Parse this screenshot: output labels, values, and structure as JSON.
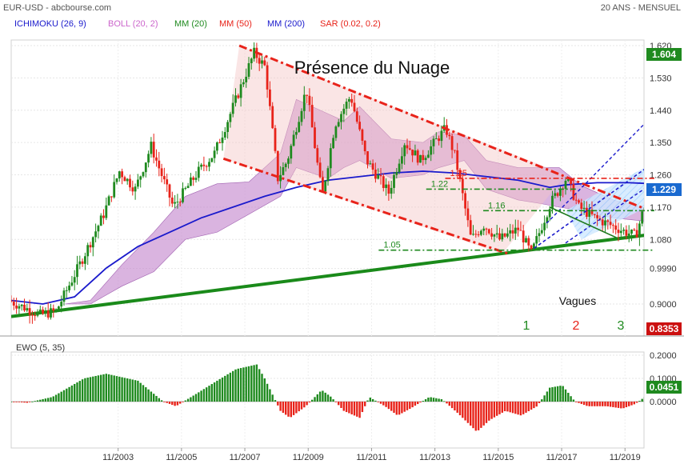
{
  "header": {
    "symbol": "EUR-USD - abcbourse.com",
    "period": "20 ANS - MENSUEL"
  },
  "legend": [
    {
      "label": "ICHIMOKU (26, 9)",
      "color": "#1a1acc"
    },
    {
      "label": "BOLL (20, 2)",
      "color": "#cc66cc"
    },
    {
      "label": "MM (20)",
      "color": "#1f8a1f"
    },
    {
      "label": "MM (50)",
      "color": "#e8231a"
    },
    {
      "label": "MM (200)",
      "color": "#1a1acc"
    },
    {
      "label": "SAR (0.02, 0.2)",
      "color": "#e8231a"
    }
  ],
  "annotations": {
    "title": "Présence du Nuage",
    "vagues": "Vagues",
    "waves": [
      {
        "label": "1",
        "color": "#1f8a1f"
      },
      {
        "label": "2",
        "color": "#e8231a"
      },
      {
        "label": "3",
        "color": "#1f8a1f"
      }
    ],
    "levels": [
      {
        "label": "1.25",
        "value": 1.25,
        "color": "#e8231a"
      },
      {
        "label": "1.22",
        "value": 1.22,
        "color": "#1f8a1f"
      },
      {
        "label": "1.16",
        "value": 1.16,
        "color": "#1f8a1f"
      },
      {
        "label": "1.05",
        "value": 1.05,
        "color": "#1f8a1f"
      }
    ]
  },
  "badges": {
    "high": "1.604",
    "last": "1.229",
    "low": "0.8353",
    "ewo_last": "0.0451"
  },
  "colors": {
    "bull": "#1f8a1f",
    "bear": "#e8231a",
    "cloud": "#c68cd0",
    "channel": "#e8231a",
    "support": "#1a8a1a",
    "ma200": "#1a1acc",
    "badge_green": "#1f8a1f",
    "badge_blue": "#1a6ad0",
    "badge_red": "#cc1111"
  },
  "chart_data": [
    {
      "type": "candlestick",
      "title": "Présence du Nuage",
      "x_label": "",
      "y_label": "",
      "x_range": [
        2000.5,
        2020.8
      ],
      "y_range": [
        0.8353,
        1.604
      ],
      "y_ticks": [
        "1.620",
        "1.530",
        "1.440",
        "1.350",
        "1.260",
        "1.170",
        "1.080",
        "0.9990",
        "0.9000"
      ],
      "x_ticks": [
        "11/2003",
        "11/2005",
        "11/2007",
        "11/2009",
        "11/2011",
        "11/2013",
        "11/2015",
        "11/2017",
        "11/2019"
      ],
      "price_path": [
        [
          2000.5,
          0.91
        ],
        [
          2001.5,
          0.87
        ],
        [
          2002.0,
          0.88
        ],
        [
          2002.8,
          1.02
        ],
        [
          2003.5,
          1.15
        ],
        [
          2004.0,
          1.27
        ],
        [
          2004.5,
          1.22
        ],
        [
          2005.0,
          1.34
        ],
        [
          2005.7,
          1.17
        ],
        [
          2006.5,
          1.27
        ],
        [
          2007.0,
          1.32
        ],
        [
          2007.5,
          1.43
        ],
        [
          2008.25,
          1.6
        ],
        [
          2008.6,
          1.56
        ],
        [
          2009.0,
          1.25
        ],
        [
          2009.3,
          1.3
        ],
        [
          2009.9,
          1.5
        ],
        [
          2010.4,
          1.2
        ],
        [
          2010.8,
          1.4
        ],
        [
          2011.3,
          1.48
        ],
        [
          2011.8,
          1.3
        ],
        [
          2012.5,
          1.21
        ],
        [
          2013.0,
          1.35
        ],
        [
          2013.5,
          1.3
        ],
        [
          2014.3,
          1.39
        ],
        [
          2014.6,
          1.31
        ],
        [
          2015.1,
          1.08
        ],
        [
          2015.5,
          1.12
        ],
        [
          2016.0,
          1.08
        ],
        [
          2016.6,
          1.11
        ],
        [
          2017.0,
          1.04
        ],
        [
          2017.6,
          1.18
        ],
        [
          2018.1,
          1.25
        ],
        [
          2018.5,
          1.17
        ],
        [
          2019.0,
          1.14
        ],
        [
          2019.5,
          1.12
        ],
        [
          2020.0,
          1.1
        ],
        [
          2020.3,
          1.09
        ],
        [
          2020.6,
          1.18
        ],
        [
          2020.8,
          1.229
        ]
      ],
      "ma200": [
        [
          2000.5,
          0.91
        ],
        [
          2001.5,
          0.9
        ],
        [
          2002.5,
          0.92
        ],
        [
          2003.5,
          1.0
        ],
        [
          2004.5,
          1.06
        ],
        [
          2005.5,
          1.1
        ],
        [
          2006.5,
          1.14
        ],
        [
          2007.5,
          1.17
        ],
        [
          2008.5,
          1.2
        ],
        [
          2009.5,
          1.225
        ],
        [
          2010.5,
          1.245
        ],
        [
          2011.5,
          1.255
        ],
        [
          2012.5,
          1.265
        ],
        [
          2013.5,
          1.27
        ],
        [
          2014.5,
          1.265
        ],
        [
          2015.5,
          1.255
        ],
        [
          2016.5,
          1.245
        ],
        [
          2017.5,
          1.225
        ],
        [
          2018.0,
          1.232
        ],
        [
          2019.0,
          1.238
        ],
        [
          2020.0,
          1.238
        ],
        [
          2020.8,
          1.235
        ]
      ],
      "cloud_upper": [
        [
          2002.2,
          0.9
        ],
        [
          2003.0,
          0.91
        ],
        [
          2004.0,
          1.01
        ],
        [
          2005.0,
          1.1
        ],
        [
          2006.0,
          1.2
        ],
        [
          2007.0,
          1.235
        ],
        [
          2008.0,
          1.24
        ],
        [
          2009.0,
          1.32
        ],
        [
          2009.5,
          1.47
        ],
        [
          2010.5,
          1.43
        ],
        [
          2011.0,
          1.41
        ],
        [
          2011.5,
          1.45
        ],
        [
          2012.5,
          1.36
        ],
        [
          2013.5,
          1.35
        ],
        [
          2014.0,
          1.38
        ],
        [
          2014.8,
          1.37
        ],
        [
          2015.5,
          1.3
        ],
        [
          2016.5,
          1.28
        ],
        [
          2017.2,
          1.28
        ],
        [
          2017.8,
          1.28
        ],
        [
          2018.5,
          1.23
        ],
        [
          2019.5,
          1.19
        ],
        [
          2020.6,
          1.165
        ],
        [
          2020.8,
          1.16
        ]
      ],
      "cloud_lower": [
        [
          2002.2,
          0.9
        ],
        [
          2003.0,
          0.9
        ],
        [
          2004.0,
          0.95
        ],
        [
          2005.0,
          0.99
        ],
        [
          2006.0,
          1.08
        ],
        [
          2007.0,
          1.1
        ],
        [
          2008.0,
          1.15
        ],
        [
          2009.0,
          1.2
        ],
        [
          2009.5,
          1.28
        ],
        [
          2010.5,
          1.25
        ],
        [
          2011.0,
          1.28
        ],
        [
          2011.5,
          1.3
        ],
        [
          2012.5,
          1.25
        ],
        [
          2013.5,
          1.26
        ],
        [
          2014.0,
          1.28
        ],
        [
          2014.8,
          1.3
        ],
        [
          2015.5,
          1.22
        ],
        [
          2016.5,
          1.19
        ],
        [
          2017.2,
          1.18
        ],
        [
          2017.8,
          1.17
        ],
        [
          2018.5,
          1.16
        ],
        [
          2019.5,
          1.14
        ],
        [
          2020.6,
          1.13
        ],
        [
          2020.8,
          1.13
        ]
      ]
    },
    {
      "type": "bar",
      "title": "EWO (5, 35)",
      "y_range": [
        -0.115,
        0.235
      ],
      "y_ticks": [
        "0.2000",
        "0.1000",
        "0.0000"
      ],
      "ewo_path": [
        [
          2000.5,
          0.0
        ],
        [
          2001.0,
          -0.005
        ],
        [
          2001.8,
          0.02
        ],
        [
          2002.8,
          0.1
        ],
        [
          2003.5,
          0.12
        ],
        [
          2004.5,
          0.09
        ],
        [
          2005.3,
          0.0
        ],
        [
          2005.7,
          -0.02
        ],
        [
          2006.3,
          0.03
        ],
        [
          2007.0,
          0.09
        ],
        [
          2007.6,
          0.14
        ],
        [
          2008.25,
          0.16
        ],
        [
          2008.5,
          0.1
        ],
        [
          2009.0,
          -0.04
        ],
        [
          2009.3,
          -0.07
        ],
        [
          2009.8,
          -0.02
        ],
        [
          2010.3,
          0.05
        ],
        [
          2010.6,
          0.02
        ],
        [
          2011.0,
          -0.04
        ],
        [
          2011.5,
          -0.07
        ],
        [
          2011.8,
          0.02
        ],
        [
          2012.3,
          -0.02
        ],
        [
          2012.7,
          -0.06
        ],
        [
          2013.1,
          -0.03
        ],
        [
          2013.7,
          0.02
        ],
        [
          2014.1,
          0.01
        ],
        [
          2014.6,
          -0.05
        ],
        [
          2015.2,
          -0.13
        ],
        [
          2015.6,
          -0.08
        ],
        [
          2016.1,
          -0.04
        ],
        [
          2016.6,
          -0.06
        ],
        [
          2017.1,
          -0.02
        ],
        [
          2017.5,
          0.06
        ],
        [
          2017.9,
          0.07
        ],
        [
          2018.3,
          0.0
        ],
        [
          2018.7,
          -0.02
        ],
        [
          2019.3,
          -0.02
        ],
        [
          2019.8,
          -0.03
        ],
        [
          2020.2,
          -0.01
        ],
        [
          2020.5,
          0.02
        ],
        [
          2020.8,
          0.0451
        ]
      ]
    }
  ]
}
